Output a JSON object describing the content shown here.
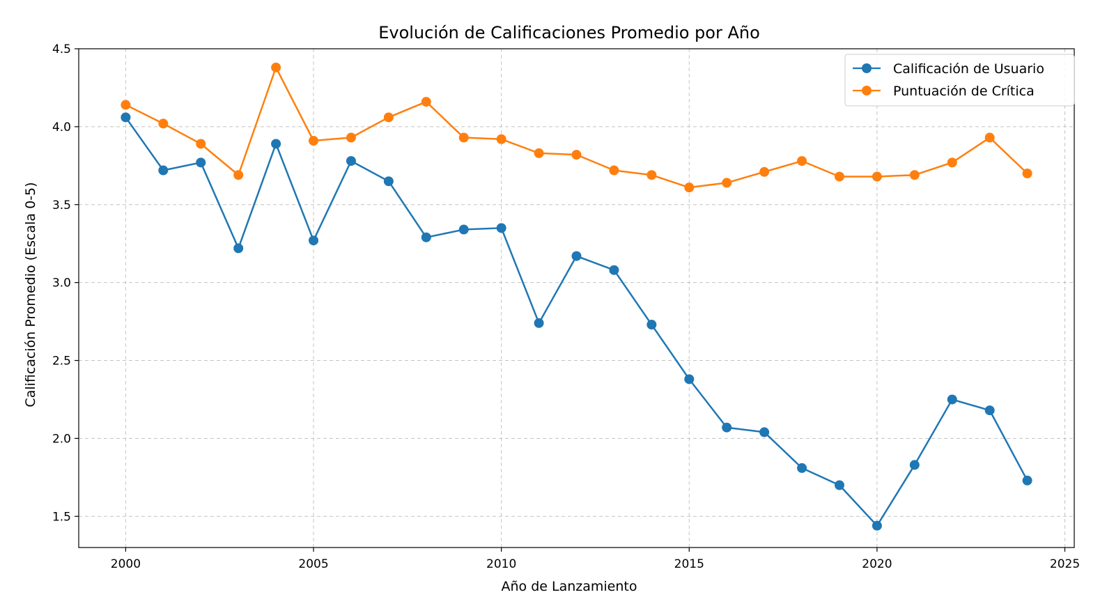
{
  "chart_data": {
    "type": "line",
    "title": "Evolución de Calificaciones Promedio por Año",
    "xlabel": "Año de Lanzamiento",
    "ylabel": "Calificación Promedio (Escala 0-5)",
    "xlim": [
      1998.75,
      2025.25
    ],
    "ylim": [
      1.3,
      4.5
    ],
    "xticks": [
      2000,
      2005,
      2010,
      2015,
      2020,
      2025
    ],
    "yticks": [
      1.5,
      2.0,
      2.5,
      3.0,
      3.5,
      4.0,
      4.5
    ],
    "xtick_labels": [
      "2000",
      "2005",
      "2010",
      "2015",
      "2020",
      "2025"
    ],
    "ytick_labels": [
      "1.5",
      "2.0",
      "2.5",
      "3.0",
      "3.5",
      "4.0",
      "4.5"
    ],
    "grid": true,
    "legend_position": "top-right",
    "x": [
      2000,
      2001,
      2002,
      2003,
      2004,
      2005,
      2006,
      2007,
      2008,
      2009,
      2010,
      2011,
      2012,
      2013,
      2014,
      2015,
      2016,
      2017,
      2018,
      2019,
      2020,
      2021,
      2022,
      2023,
      2024
    ],
    "series": [
      {
        "name": "Calificación de Usuario",
        "color": "#1f77b4",
        "values": [
          4.06,
          3.72,
          3.77,
          3.22,
          3.89,
          3.27,
          3.78,
          3.65,
          3.29,
          3.34,
          3.35,
          2.74,
          3.17,
          3.08,
          2.73,
          2.38,
          2.07,
          2.04,
          1.81,
          1.7,
          1.44,
          1.83,
          2.25,
          2.18,
          1.73
        ]
      },
      {
        "name": "Puntuación de Crítica",
        "color": "#ff7f0e",
        "values": [
          4.14,
          4.02,
          3.89,
          3.69,
          4.38,
          3.91,
          3.93,
          4.06,
          4.16,
          3.93,
          3.92,
          3.83,
          3.82,
          3.72,
          3.69,
          3.61,
          3.64,
          3.71,
          3.78,
          3.68,
          3.68,
          3.69,
          3.77,
          3.93,
          3.7
        ]
      }
    ]
  }
}
